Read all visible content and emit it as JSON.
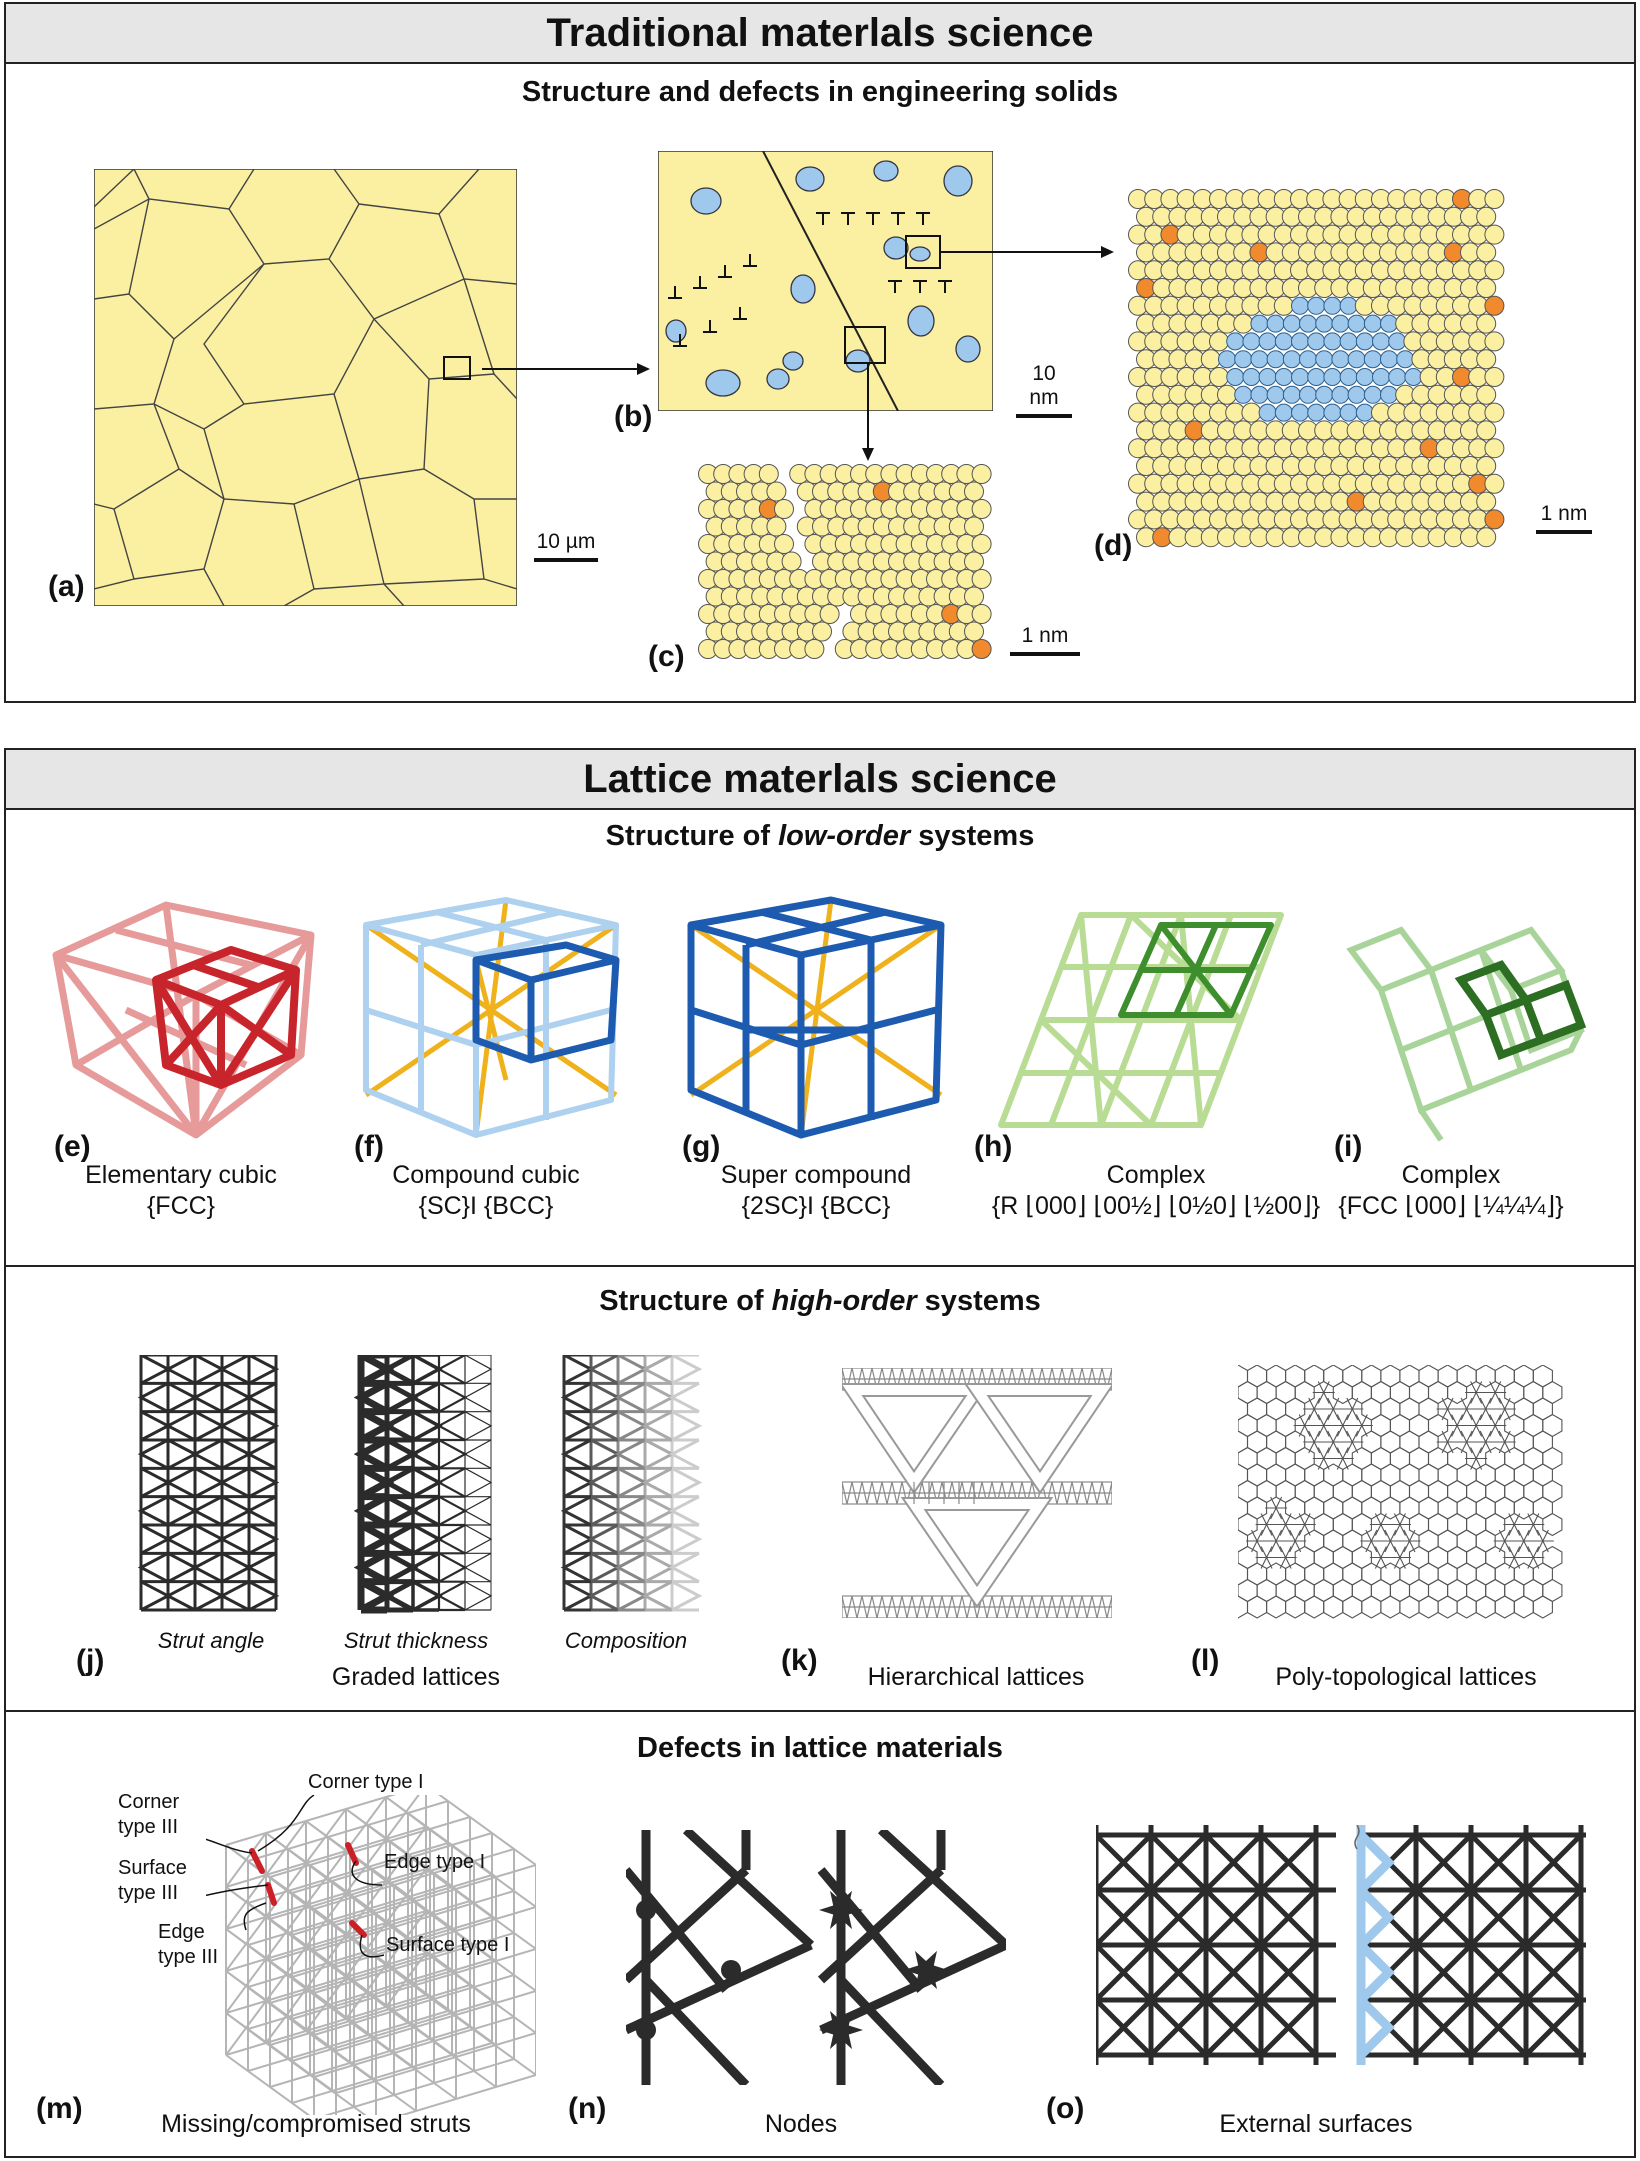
{
  "top": {
    "title": "Traditional materlals science",
    "subtitle": "Structure and defects in engineering solids",
    "panels": {
      "a": "(a)",
      "b": "(b)",
      "c": "(c)",
      "d": "(d)"
    },
    "scales": {
      "a": "10 µm",
      "b": "10 nm",
      "c": "1 nm",
      "d": "1 nm"
    }
  },
  "bottom": {
    "title": "Lattice materlals science",
    "low": {
      "subtitle_pre": "Structure of ",
      "subtitle_em": "low-order",
      "subtitle_post": " systems",
      "items": [
        {
          "label": "(e)",
          "line1": "Elementary cubic",
          "line2": "{FCC}"
        },
        {
          "label": "(f)",
          "line1": "Compound cubic",
          "line2": "{SC}I {BCC}"
        },
        {
          "label": "(g)",
          "line1": "Super compound",
          "line2": "{2SC}I {BCC}"
        },
        {
          "label": "(h)",
          "line1": "Complex",
          "line2": "{R ⌊000⌋ ⌊00½⌋ ⌊0½0⌋ ⌊½00⌋}"
        },
        {
          "label": "(i)",
          "line1": "Complex",
          "line2": "{FCC ⌊000⌋ ⌊¼¼¼⌋}"
        }
      ]
    },
    "high": {
      "subtitle_pre": "Structure of ",
      "subtitle_em": "high-order",
      "subtitle_post": " systems",
      "graded": [
        "Strut angle",
        "Strut thickness",
        "Composition"
      ],
      "captions": {
        "j": "Graded lattices",
        "k": "Hierarchical lattices",
        "l": "Poly-topological lattices"
      },
      "labels": {
        "j": "(j)",
        "k": "(k)",
        "l": "(l)"
      }
    },
    "defects": {
      "subtitle": "Defects in lattice materials",
      "callouts": {
        "corner1": "Corner type I",
        "corner3a": "Corner",
        "corner3b": "type III",
        "edge1": "Edge type I",
        "surface3a": "Surface",
        "surface3b": "type III",
        "edge3a": "Edge",
        "edge3b": "type III",
        "surface1": "Surface type I"
      },
      "captions": {
        "m": "Missing/compromised struts",
        "n": "Nodes",
        "o": "External surfaces"
      },
      "labels": {
        "m": "(m)",
        "n": "(n)",
        "o": "(o)"
      }
    }
  },
  "colors": {
    "yellow": "#fbf0a2",
    "blue": "#9ec8ec",
    "orange": "#f08a2c",
    "red": "#cc2028",
    "pink": "#e69a9a",
    "lightblue": "#aed1ef",
    "gold": "#f0b21c",
    "darkblue": "#1c5bb0",
    "lightgreen": "#b9dc95",
    "green": "#3e8e2e",
    "gray": "#aaaaaa",
    "dark": "#2b2b2b"
  }
}
